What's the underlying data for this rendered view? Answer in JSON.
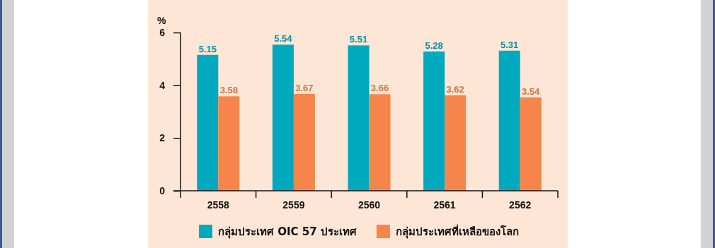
{
  "chart_data": {
    "type": "bar",
    "ylabel": "%",
    "categories": [
      "2558",
      "2559",
      "2560",
      "2561",
      "2562"
    ],
    "series": [
      {
        "name": "กลุ่มประเทศ OIC 57 ประเทศ",
        "color": "#00a9bd",
        "values": [
          5.15,
          5.54,
          5.51,
          5.28,
          5.31
        ]
      },
      {
        "name": "กลุ่มประเทศที่เหลือของโลก",
        "color": "#f5854b",
        "values": [
          3.58,
          3.67,
          3.66,
          3.62,
          3.54
        ]
      }
    ],
    "ylim": [
      0,
      6
    ],
    "yticks": [
      0,
      2,
      4,
      6
    ],
    "data_labels": true,
    "legend": "bottom",
    "grid": false
  }
}
